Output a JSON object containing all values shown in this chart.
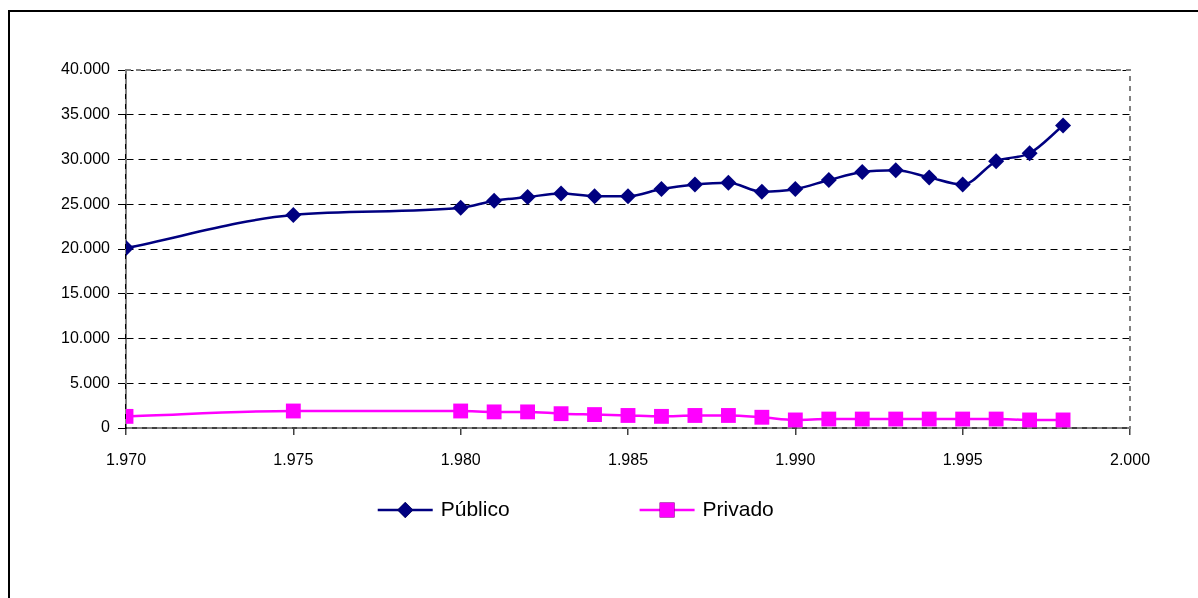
{
  "chart_data": {
    "type": "line",
    "x": [
      1970,
      1975,
      1980,
      1981,
      1982,
      1983,
      1984,
      1985,
      1986,
      1987,
      1988,
      1989,
      1990,
      1991,
      1992,
      1993,
      1994,
      1995,
      1996,
      1997,
      1998
    ],
    "series": [
      {
        "name": "Público",
        "color": "#000080",
        "marker": "diamond",
        "values": [
          20100,
          23800,
          24600,
          25400,
          25800,
          26200,
          25900,
          25900,
          26700,
          27200,
          27400,
          26400,
          26700,
          27700,
          28600,
          28800,
          28000,
          27200,
          29800,
          30700,
          33800
        ]
      },
      {
        "name": "Privado",
        "color": "#ff00ff",
        "marker": "square",
        "values": [
          1300,
          1900,
          1900,
          1800,
          1800,
          1600,
          1500,
          1400,
          1300,
          1400,
          1400,
          1200,
          900,
          1000,
          1000,
          1000,
          1000,
          1000,
          1000,
          900,
          900
        ]
      }
    ],
    "xlim": [
      1970,
      2000
    ],
    "xticks": [
      {
        "value": 1970,
        "label": "1.970"
      },
      {
        "value": 1975,
        "label": "1.975"
      },
      {
        "value": 1980,
        "label": "1.980"
      },
      {
        "value": 1985,
        "label": "1.985"
      },
      {
        "value": 1990,
        "label": "1.990"
      },
      {
        "value": 1995,
        "label": "1.995"
      },
      {
        "value": 2000,
        "label": "2.000"
      }
    ],
    "ylim": [
      0,
      40000
    ],
    "yticks": [
      0,
      {
        "value": 5000,
        "label": "5.000"
      },
      {
        "value": 10000,
        "label": "10.000"
      },
      {
        "value": 15000,
        "label": "15.000"
      },
      {
        "value": 20000,
        "label": "20.000"
      },
      {
        "value": 25000,
        "label": "25.000"
      },
      {
        "value": 30000,
        "label": "30.000"
      },
      {
        "value": 35000,
        "label": "35.000"
      },
      {
        "value": 40000,
        "label": "40.000"
      }
    ],
    "grid": "y",
    "legend": "bottom"
  }
}
